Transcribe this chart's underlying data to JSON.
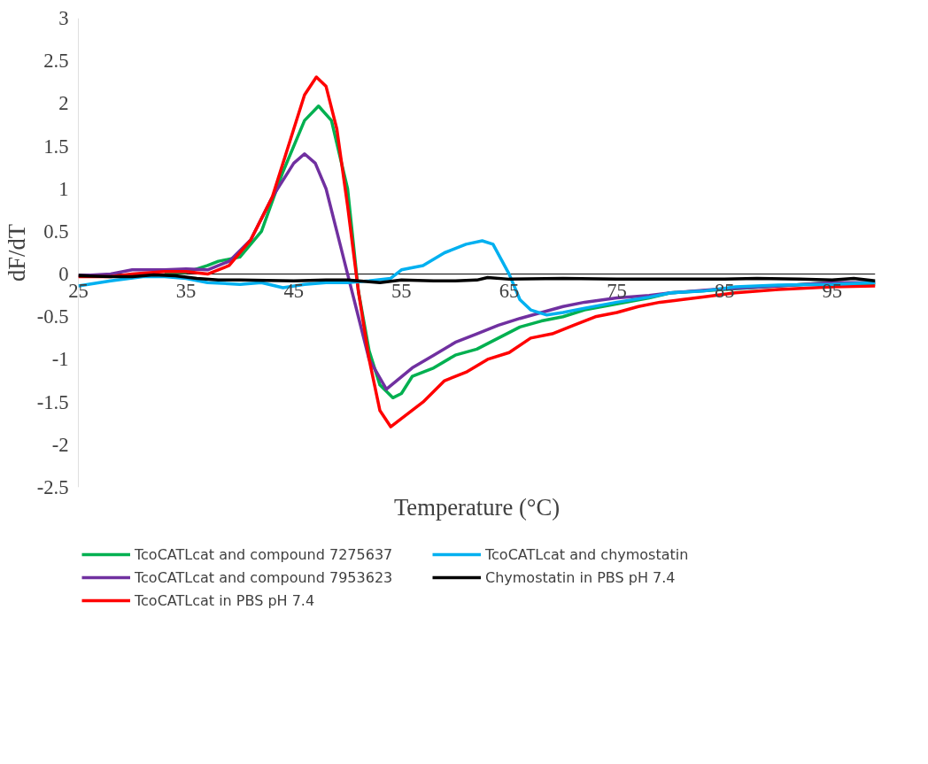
{
  "chart_data": {
    "type": "line",
    "xlabel": "Temperature (°C)",
    "ylabel": "dF/dT",
    "xlim": [
      25,
      99
    ],
    "xticks": [
      25,
      35,
      45,
      55,
      65,
      75,
      85,
      95
    ],
    "ylim": [
      -2.5,
      3
    ],
    "yticks": [
      -2.5,
      -2,
      -1.5,
      -1,
      -0.5,
      0,
      0.5,
      1,
      1.5,
      2,
      2.5,
      3
    ],
    "grid": false,
    "legend": "bottom",
    "marker": "none",
    "line_style": "solid",
    "series": [
      {
        "name": "TcoCATLcat and compound 7275637",
        "color": "#00b050",
        "x": [
          33,
          35,
          37,
          38,
          40,
          42,
          44,
          46,
          47.3,
          48.5,
          50,
          51,
          52,
          53,
          54.2,
          55,
          56,
          58,
          60,
          62,
          64,
          66,
          68,
          70,
          72,
          75,
          78,
          80,
          85,
          90,
          95,
          99
        ],
        "values": [
          0.02,
          0.02,
          0.1,
          0.15,
          0.2,
          0.5,
          1.2,
          1.8,
          1.97,
          1.8,
          1.0,
          -0.2,
          -0.9,
          -1.3,
          -1.45,
          -1.4,
          -1.2,
          -1.1,
          -0.95,
          -0.88,
          -0.75,
          -0.62,
          -0.55,
          -0.5,
          -0.42,
          -0.35,
          -0.28,
          -0.22,
          -0.18,
          -0.14,
          -0.1,
          -0.12
        ]
      },
      {
        "name": "TcoCATLcat and compound 7953623",
        "color": "#7030a0",
        "x": [
          25,
          28,
          30,
          33,
          35,
          37,
          39,
          41,
          43,
          45,
          46,
          47,
          48,
          49,
          50,
          51,
          52,
          53.6,
          56,
          58,
          60,
          62,
          64,
          66,
          68,
          70,
          72,
          75,
          78,
          80,
          84,
          90,
          95,
          99
        ],
        "values": [
          -0.02,
          0.0,
          0.05,
          0.05,
          0.06,
          0.05,
          0.15,
          0.4,
          0.9,
          1.3,
          1.41,
          1.3,
          1.0,
          0.5,
          0.0,
          -0.5,
          -1.0,
          -1.35,
          -1.1,
          -0.95,
          -0.8,
          -0.7,
          -0.6,
          -0.52,
          -0.45,
          -0.38,
          -0.33,
          -0.28,
          -0.25,
          -0.22,
          -0.18,
          -0.14,
          -0.1,
          -0.1
        ]
      },
      {
        "name": "TcoCATLcat in PBS pH 7.4",
        "color": "#ff0000",
        "x": [
          25,
          28,
          30,
          33,
          35,
          37,
          39,
          41,
          43,
          45,
          46,
          47.1,
          48,
          49,
          50,
          51,
          52,
          53,
          54,
          57,
          59,
          61,
          63,
          65,
          67,
          69,
          71,
          73,
          75,
          77,
          79,
          81,
          83,
          86,
          90,
          95,
          99
        ],
        "values": [
          -0.03,
          -0.03,
          0.0,
          0.03,
          0.03,
          0.0,
          0.1,
          0.4,
          0.9,
          1.7,
          2.1,
          2.31,
          2.2,
          1.7,
          0.8,
          -0.2,
          -1.0,
          -1.6,
          -1.79,
          -1.5,
          -1.25,
          -1.15,
          -1.0,
          -0.92,
          -0.75,
          -0.7,
          -0.6,
          -0.5,
          -0.45,
          -0.38,
          -0.33,
          -0.3,
          -0.27,
          -0.22,
          -0.18,
          -0.15,
          -0.14
        ]
      },
      {
        "name": "TcoCATLcat and chymostatin",
        "color": "#00b0f0",
        "x": [
          25,
          28,
          31,
          33,
          35,
          37,
          40,
          42,
          44,
          46,
          48,
          50,
          52,
          54,
          55,
          57,
          59,
          61,
          62.5,
          63.5,
          65,
          66,
          67,
          68.5,
          70,
          72,
          75,
          78,
          80,
          83,
          86,
          90,
          95,
          99
        ],
        "values": [
          -0.14,
          -0.08,
          -0.03,
          -0.03,
          -0.05,
          -0.1,
          -0.12,
          -0.1,
          -0.16,
          -0.12,
          -0.1,
          -0.1,
          -0.08,
          -0.05,
          0.05,
          0.1,
          0.25,
          0.35,
          0.39,
          0.35,
          0.0,
          -0.3,
          -0.42,
          -0.48,
          -0.45,
          -0.4,
          -0.33,
          -0.27,
          -0.22,
          -0.2,
          -0.15,
          -0.13,
          -0.12,
          -0.1
        ]
      },
      {
        "name": "Chymostatin in PBS pH 7.4",
        "color": "#000000",
        "x": [
          25,
          28,
          30,
          32,
          34,
          36,
          38,
          40,
          45,
          48,
          50,
          53,
          55,
          58,
          60,
          62,
          63,
          65,
          70,
          75,
          80,
          85,
          88,
          92,
          95,
          97,
          99
        ],
        "values": [
          -0.02,
          -0.03,
          -0.03,
          -0.01,
          -0.02,
          -0.05,
          -0.07,
          -0.07,
          -0.08,
          -0.07,
          -0.07,
          -0.1,
          -0.07,
          -0.08,
          -0.08,
          -0.07,
          -0.04,
          -0.06,
          -0.05,
          -0.06,
          -0.06,
          -0.06,
          -0.05,
          -0.06,
          -0.07,
          -0.05,
          -0.08
        ]
      }
    ]
  }
}
